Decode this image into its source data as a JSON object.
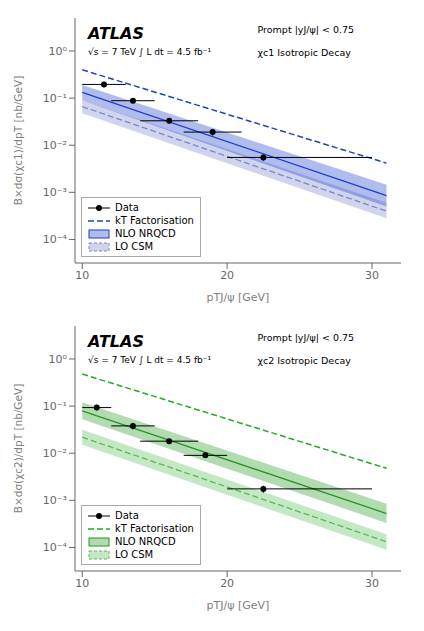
{
  "chart_data": [
    {
      "type": "line",
      "xlabel": "pTJ/ψ [GeV]",
      "ylabel": "B×dσ(χc1)/dpT [nb/GeV]",
      "annotations": [
        "ATLAS",
        "√s = 7 TeV   ∫ L dt = 4.5 fb⁻¹",
        "Prompt |yJ/ψ| < 0.75",
        "χc1 Isotropic Decay"
      ],
      "log": "y",
      "xlim": [
        9.5,
        32
      ],
      "xticks": [
        10,
        20,
        30
      ],
      "ylim": [
        3.1622776601683795e-05,
        5.011872336272722
      ],
      "yticks": [
        {
          "value": 0.0001,
          "label": "10⁻⁴"
        },
        {
          "value": 0.001,
          "label": "10⁻³"
        },
        {
          "value": 0.01,
          "label": "10⁻²"
        },
        {
          "value": 0.1,
          "label": "10⁻¹"
        },
        {
          "value": 1,
          "label": "10⁰"
        }
      ],
      "legend": "lower left",
      "series": [
        {
          "name": "Data",
          "type": "scatter",
          "color": "#000000",
          "marker": "circle",
          "x": [
            11.5,
            13.5,
            16.0,
            19.0,
            22.5
          ],
          "values": [
            0.195,
            0.088,
            0.033,
            0.019,
            0.0055
          ],
          "xerr_lo": [
            1.5,
            1.5,
            2.0,
            2.0,
            2.5
          ],
          "xerr_hi": [
            1.5,
            1.5,
            2.0,
            2.0,
            7.5
          ],
          "yerr_lo": [
            0.025,
            0.01,
            0.004,
            0.003,
            0.0008
          ],
          "yerr_hi": [
            0.025,
            0.01,
            0.004,
            0.003,
            0.0008
          ]
        },
        {
          "name": "kT Factorisation",
          "type": "line",
          "color": "#2244bb",
          "line_style": "dashed",
          "x": [
            10,
            31
          ],
          "values": [
            0.398107,
            0.00416869
          ]
        },
        {
          "name": "NLO NRQCD",
          "type": "band",
          "color": "#1a3fcc",
          "line_style": "solid",
          "x": [
            10,
            31
          ],
          "values": [
            0.131826,
            0.000851138
          ],
          "lower": [
            0.0891251,
            0.000501187
          ],
          "upper": [
            0.190546,
            0.00144544
          ]
        },
        {
          "name": "LO CSM",
          "type": "band",
          "color": "#7788cc",
          "line_style": "dashed",
          "x": [
            10,
            31
          ],
          "values": [
            0.0660693,
            0.000398107
          ],
          "lower": [
            0.047863,
            0.000281838
          ],
          "upper": [
            0.0891251,
            0.00060256
          ]
        }
      ]
    },
    {
      "type": "line",
      "xlabel": "pTJ/ψ [GeV]",
      "ylabel": "B×dσ(χc2)/dpT [nb/GeV]",
      "annotations": [
        "ATLAS",
        "√s = 7 TeV   ∫ L dt = 4.5 fb⁻¹",
        "Prompt |yJ/ψ| < 0.75",
        "χc2 Isotropic Decay"
      ],
      "log": "y",
      "xlim": [
        9.5,
        32
      ],
      "xticks": [
        10,
        20,
        30
      ],
      "ylim": [
        3.1622776601683795e-05,
        5.011872336272722
      ],
      "yticks": [
        {
          "value": 0.0001,
          "label": "10⁻⁴"
        },
        {
          "value": 0.001,
          "label": "10⁻³"
        },
        {
          "value": 0.01,
          "label": "10⁻²"
        },
        {
          "value": 0.1,
          "label": "10⁻¹"
        },
        {
          "value": 1,
          "label": "10⁰"
        }
      ],
      "legend": "lower left",
      "series": [
        {
          "name": "Data",
          "type": "scatter",
          "color": "#000000",
          "marker": "circle",
          "x": [
            11.0,
            13.5,
            16.0,
            18.5,
            22.5
          ],
          "values": [
            0.093,
            0.038,
            0.018,
            0.009,
            0.00175
          ],
          "xerr_lo": [
            1.0,
            1.5,
            2.0,
            1.5,
            2.5
          ],
          "xerr_hi": [
            1.0,
            1.5,
            2.0,
            1.5,
            7.5
          ],
          "yerr_lo": [
            0.012,
            0.006,
            0.002,
            0.001,
            0.0003
          ],
          "yerr_hi": [
            0.012,
            0.006,
            0.002,
            0.001,
            0.0003
          ]
        },
        {
          "name": "kT Factorisation",
          "type": "line",
          "color": "#22aa22",
          "line_style": "dashed",
          "x": [
            10,
            31
          ],
          "values": [
            0.47863,
            0.0047863
          ]
        },
        {
          "name": "NLO NRQCD",
          "type": "band",
          "color": "#229922",
          "line_style": "solid",
          "x": [
            10,
            31
          ],
          "values": [
            0.0794328,
            0.000524807
          ],
          "lower": [
            0.0524807,
            0.000331131
          ],
          "upper": [
            0.120226,
            0.000851138
          ]
        },
        {
          "name": "LO CSM",
          "type": "band",
          "color": "#55bb55",
          "line_style": "dashed",
          "x": [
            10,
            31
          ],
          "values": [
            0.0218776,
            0.000131826
          ],
          "lower": [
            0.0151356,
            8.91251e-05
          ],
          "upper": [
            0.0316228,
            0.000190546
          ]
        }
      ]
    }
  ]
}
